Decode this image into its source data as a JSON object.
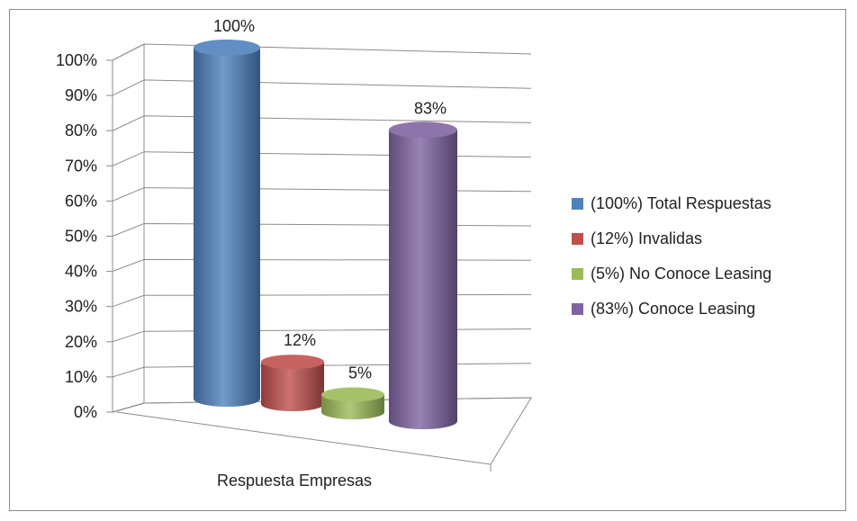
{
  "chart_data": {
    "type": "bar",
    "style": "3d-cylinder",
    "categories": [
      "Respuesta Empresas"
    ],
    "xlabel": "Respuesta Empresas",
    "ylabel": "",
    "ylim": [
      0,
      100
    ],
    "y_ticks": [
      "0%",
      "10%",
      "20%",
      "30%",
      "40%",
      "50%",
      "60%",
      "70%",
      "80%",
      "90%",
      "100%"
    ],
    "grid": true,
    "legend_position": "right",
    "series": [
      {
        "name": "(100%) Total Respuestas",
        "values": [
          100
        ],
        "label": "100%",
        "color": "#4f81bd"
      },
      {
        "name": "(12%) Invalidas",
        "values": [
          12
        ],
        "label": "12%",
        "color": "#c0504d"
      },
      {
        "name": "(5%) No Conoce Leasing",
        "values": [
          5
        ],
        "label": "5%",
        "color": "#9bbb59"
      },
      {
        "name": "(83%) Conoce Leasing",
        "values": [
          83
        ],
        "label": "83%",
        "color": "#8064a2"
      }
    ]
  }
}
